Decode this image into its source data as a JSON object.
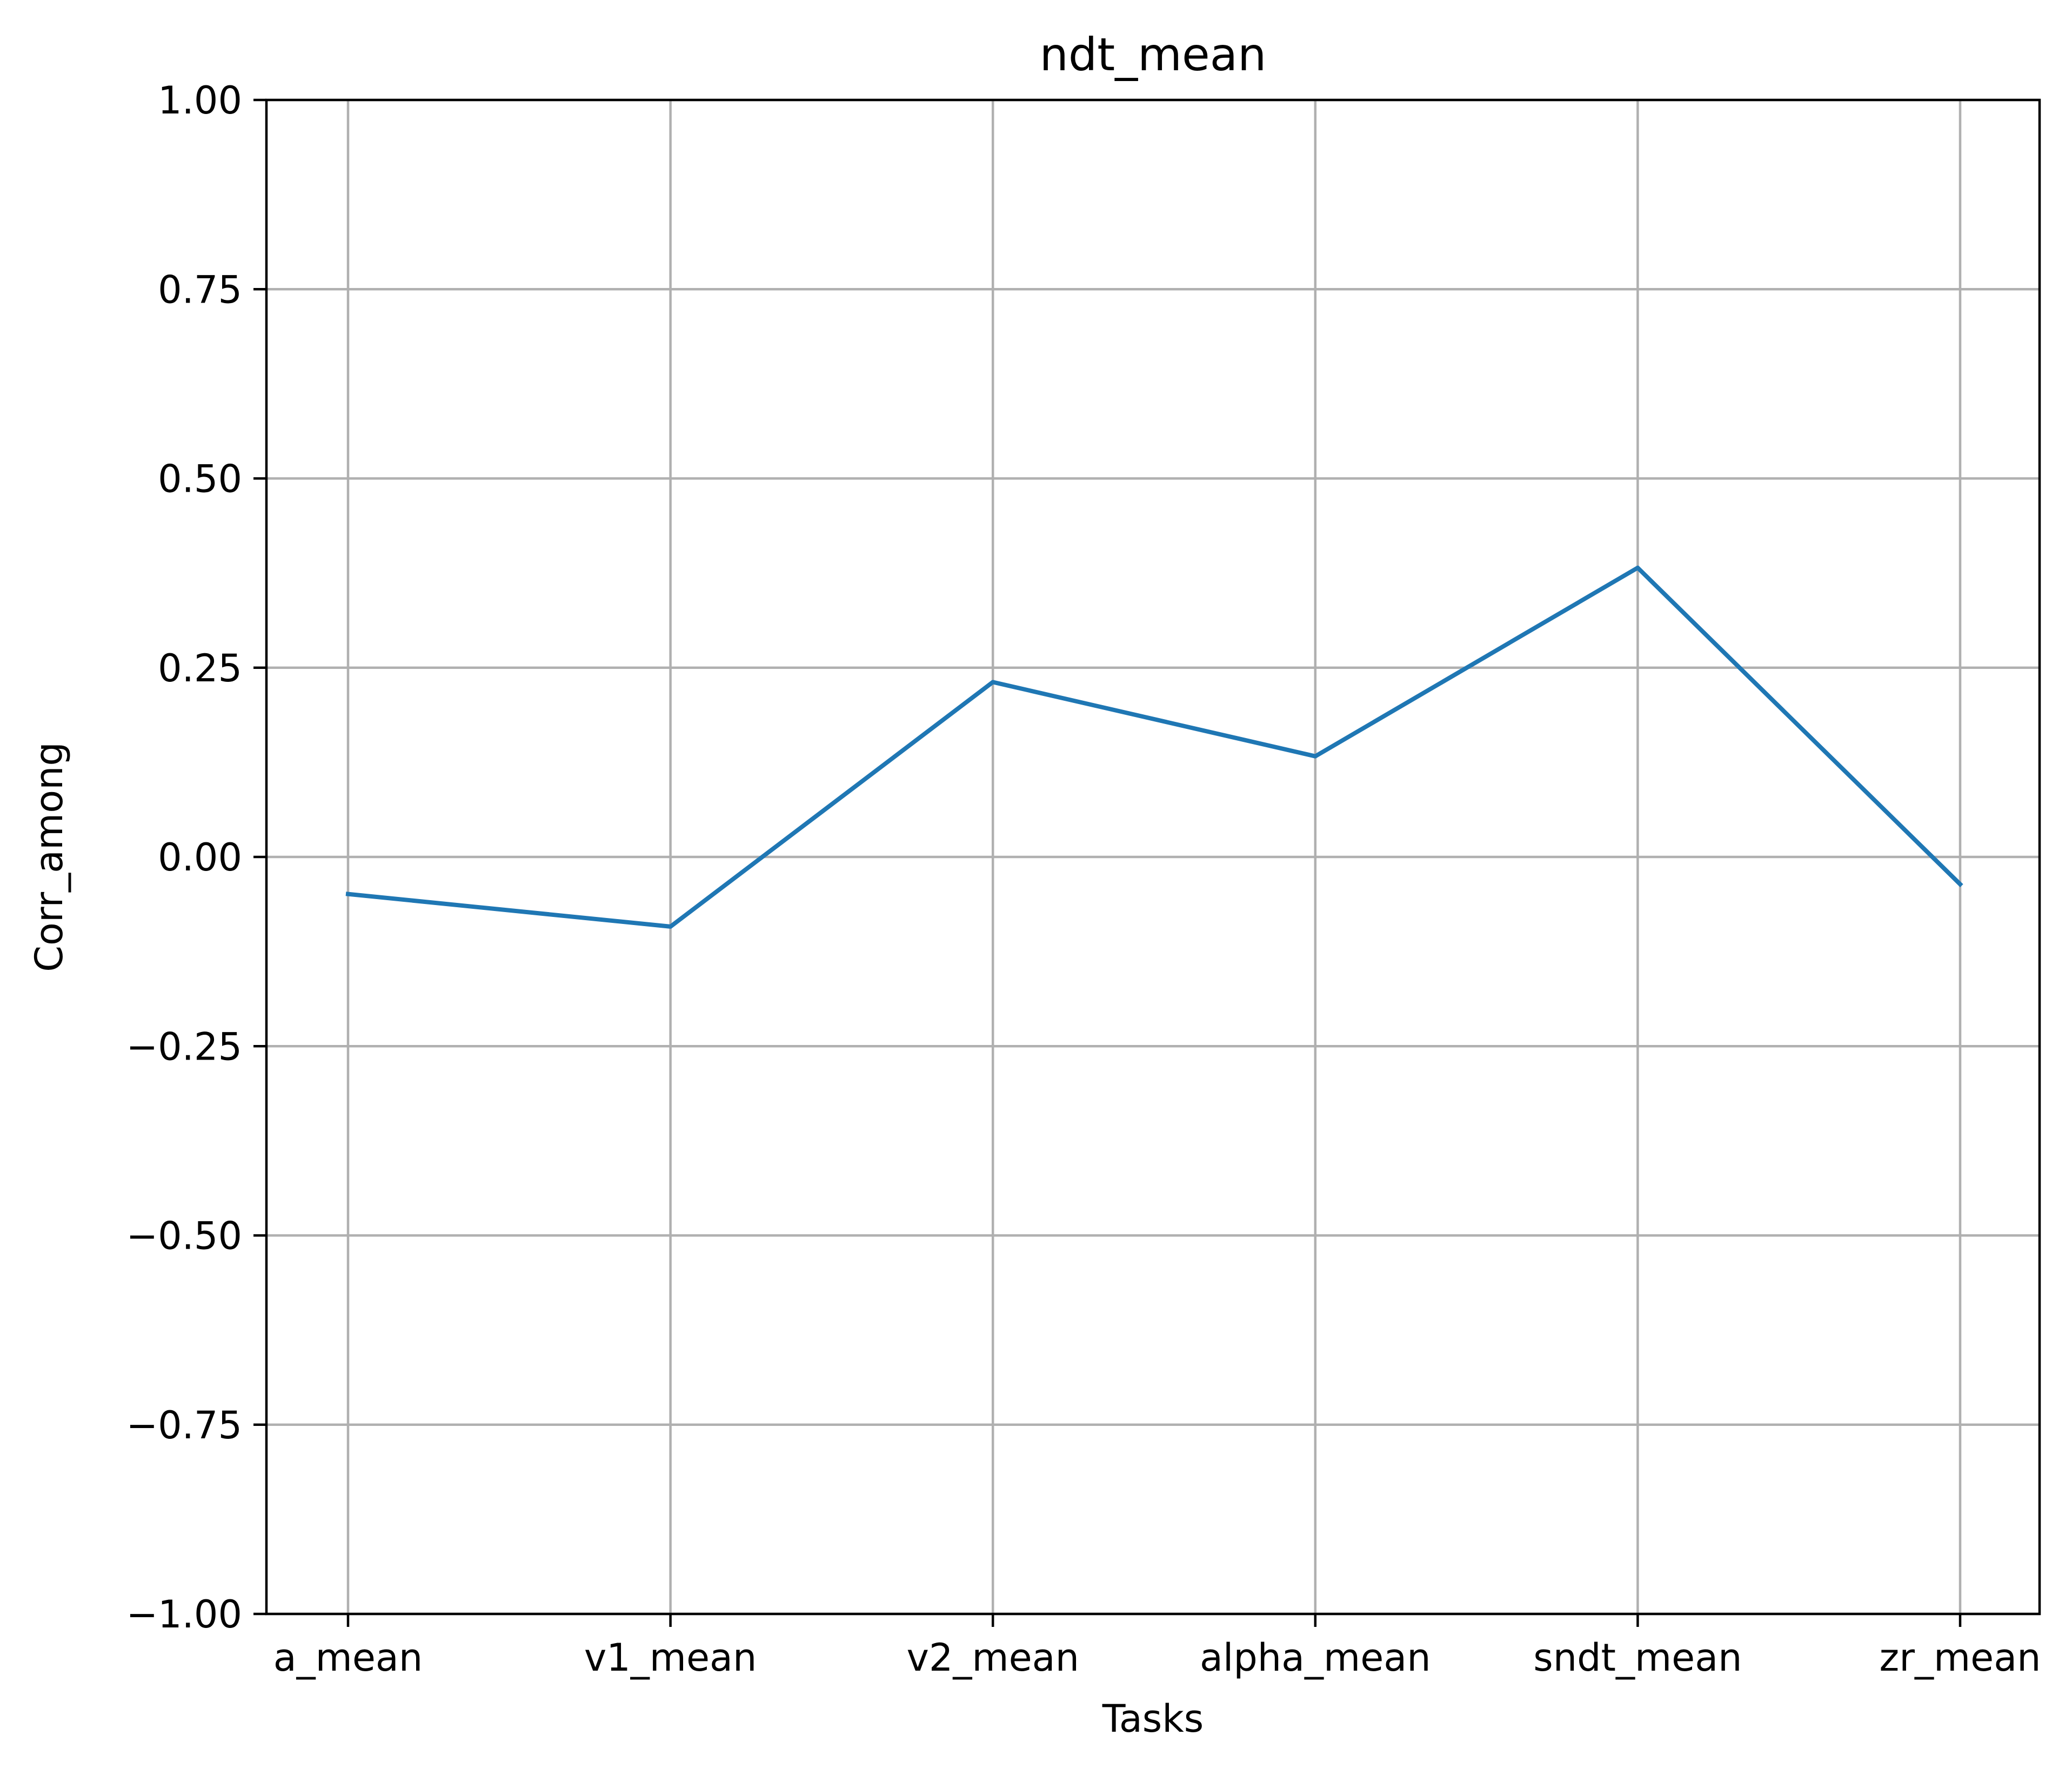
{
  "chart_data": {
    "type": "line",
    "title": "ndt_mean",
    "xlabel": "Tasks",
    "ylabel": "Corr_among",
    "categories": [
      "a_mean",
      "v1_mean",
      "v2_mean",
      "alpha_mean",
      "sndt_mean",
      "zr_mean"
    ],
    "series": [
      {
        "values": [
          -0.049,
          -0.092,
          0.231,
          0.133,
          0.382,
          -0.036
        ],
        "color": "#1f77b4"
      }
    ],
    "ylim": [
      -1.0,
      1.0
    ],
    "yticks": [
      -1.0,
      -0.75,
      -0.5,
      -0.25,
      0.0,
      0.25,
      0.5,
      0.75,
      1.0
    ],
    "ytick_labels": [
      "−1.00",
      "−0.75",
      "−0.50",
      "−0.25",
      "0.00",
      "0.25",
      "0.50",
      "0.75",
      "1.00"
    ],
    "grid": true
  }
}
